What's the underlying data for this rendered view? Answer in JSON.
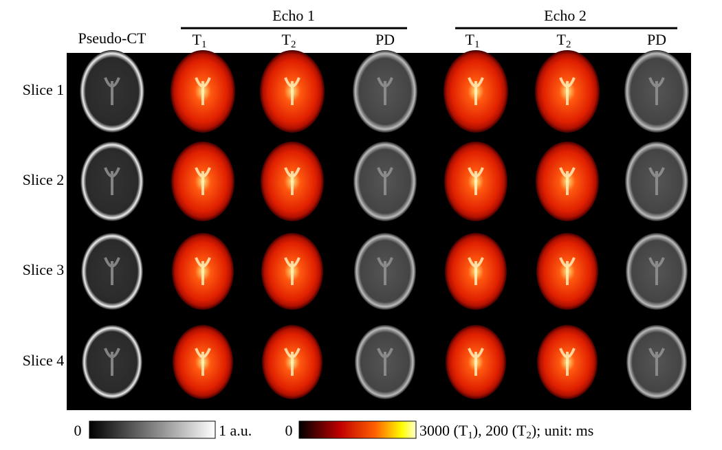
{
  "header": {
    "groups": [
      {
        "label": "Echo 1"
      },
      {
        "label": "Echo 2"
      }
    ],
    "pseudo_ct": "Pseudo-CT",
    "columns": [
      {
        "base": "T",
        "sub": "1"
      },
      {
        "base": "T",
        "sub": "2"
      },
      {
        "base": "PD"
      },
      {
        "base": "T",
        "sub": "1"
      },
      {
        "base": "T",
        "sub": "2"
      },
      {
        "base": "PD"
      }
    ]
  },
  "rows": [
    "Slice 1",
    "Slice 2",
    "Slice 3",
    "Slice 4"
  ],
  "colorbars": [
    {
      "min": "0",
      "max_parts": [
        "1 a.u."
      ]
    },
    {
      "min": "0",
      "max_parts": [
        "3000 (T",
        "1",
        "), 200 (T",
        "2",
        "); unit: ms"
      ]
    }
  ]
}
